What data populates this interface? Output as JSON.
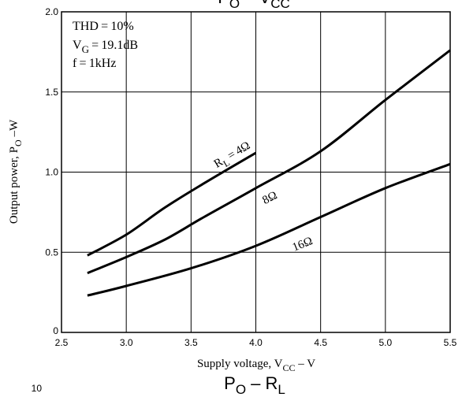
{
  "chart_data": {
    "type": "line",
    "title": "Pₒ – Vᴄᴄ",
    "title_parts": {
      "main": "P",
      "sub": "O",
      "rest": " – V",
      "sub2": "CC"
    },
    "next_title_parts": {
      "main": "P",
      "sub": "O",
      "rest": " – R",
      "sub2": "L"
    },
    "next_chart_tick": "10",
    "xlabel_parts": {
      "main": "Supply voltage, V",
      "sub": "CC",
      "rest": " – V"
    },
    "ylabel_parts": {
      "main": "Output power, P",
      "sub": "O",
      "rest": " –W"
    },
    "xlim": [
      2.5,
      5.5
    ],
    "ylim": [
      0,
      2.0
    ],
    "xticks": [
      {
        "v": 2.5,
        "label": "2.5"
      },
      {
        "v": 3.0,
        "label": "3.0"
      },
      {
        "v": 3.5,
        "label": "3.5"
      },
      {
        "v": 4.0,
        "label": "4.0"
      },
      {
        "v": 4.5,
        "label": "4.5"
      },
      {
        "v": 5.0,
        "label": "5.0"
      },
      {
        "v": 5.5,
        "label": "5.5"
      }
    ],
    "yticks": [
      {
        "v": 0,
        "label": "0"
      },
      {
        "v": 0.5,
        "label": "0.5"
      },
      {
        "v": 1.0,
        "label": "1.0"
      },
      {
        "v": 1.5,
        "label": "1.5"
      },
      {
        "v": 2.0,
        "label": "2.0"
      }
    ],
    "grid": true,
    "conditions": [
      {
        "text": "THD = 10%"
      },
      {
        "main": "V",
        "sub": "G",
        "rest": " = 19.1dB"
      },
      {
        "text": "f = 1kHz"
      }
    ],
    "series": [
      {
        "name": "Rₗ = 4Ω",
        "label_parts": {
          "main": "R",
          "sub": "L",
          "rest": " = 4Ω"
        },
        "label_at": {
          "x": 3.83,
          "y": 1.09
        },
        "label_angle": -31,
        "x": [
          2.7,
          3.0,
          3.3,
          3.6,
          4.0
        ],
        "y": [
          0.48,
          0.61,
          0.78,
          0.93,
          1.12
        ]
      },
      {
        "name": "8Ω",
        "label_parts": {
          "main": "8Ω",
          "sub": "",
          "rest": ""
        },
        "label_at": {
          "x": 4.12,
          "y": 0.82
        },
        "label_angle": -27,
        "x": [
          2.7,
          3.0,
          3.3,
          3.6,
          4.0,
          4.5,
          5.0,
          5.5
        ],
        "y": [
          0.37,
          0.47,
          0.58,
          0.72,
          0.9,
          1.13,
          1.45,
          1.76
        ]
      },
      {
        "name": "16Ω",
        "label_parts": {
          "main": "16Ω",
          "sub": "",
          "rest": ""
        },
        "label_at": {
          "x": 4.37,
          "y": 0.53
        },
        "label_angle": -22,
        "x": [
          2.7,
          3.0,
          3.5,
          4.0,
          4.5,
          5.0,
          5.5
        ],
        "y": [
          0.23,
          0.29,
          0.4,
          0.54,
          0.72,
          0.9,
          1.05
        ]
      }
    ]
  }
}
